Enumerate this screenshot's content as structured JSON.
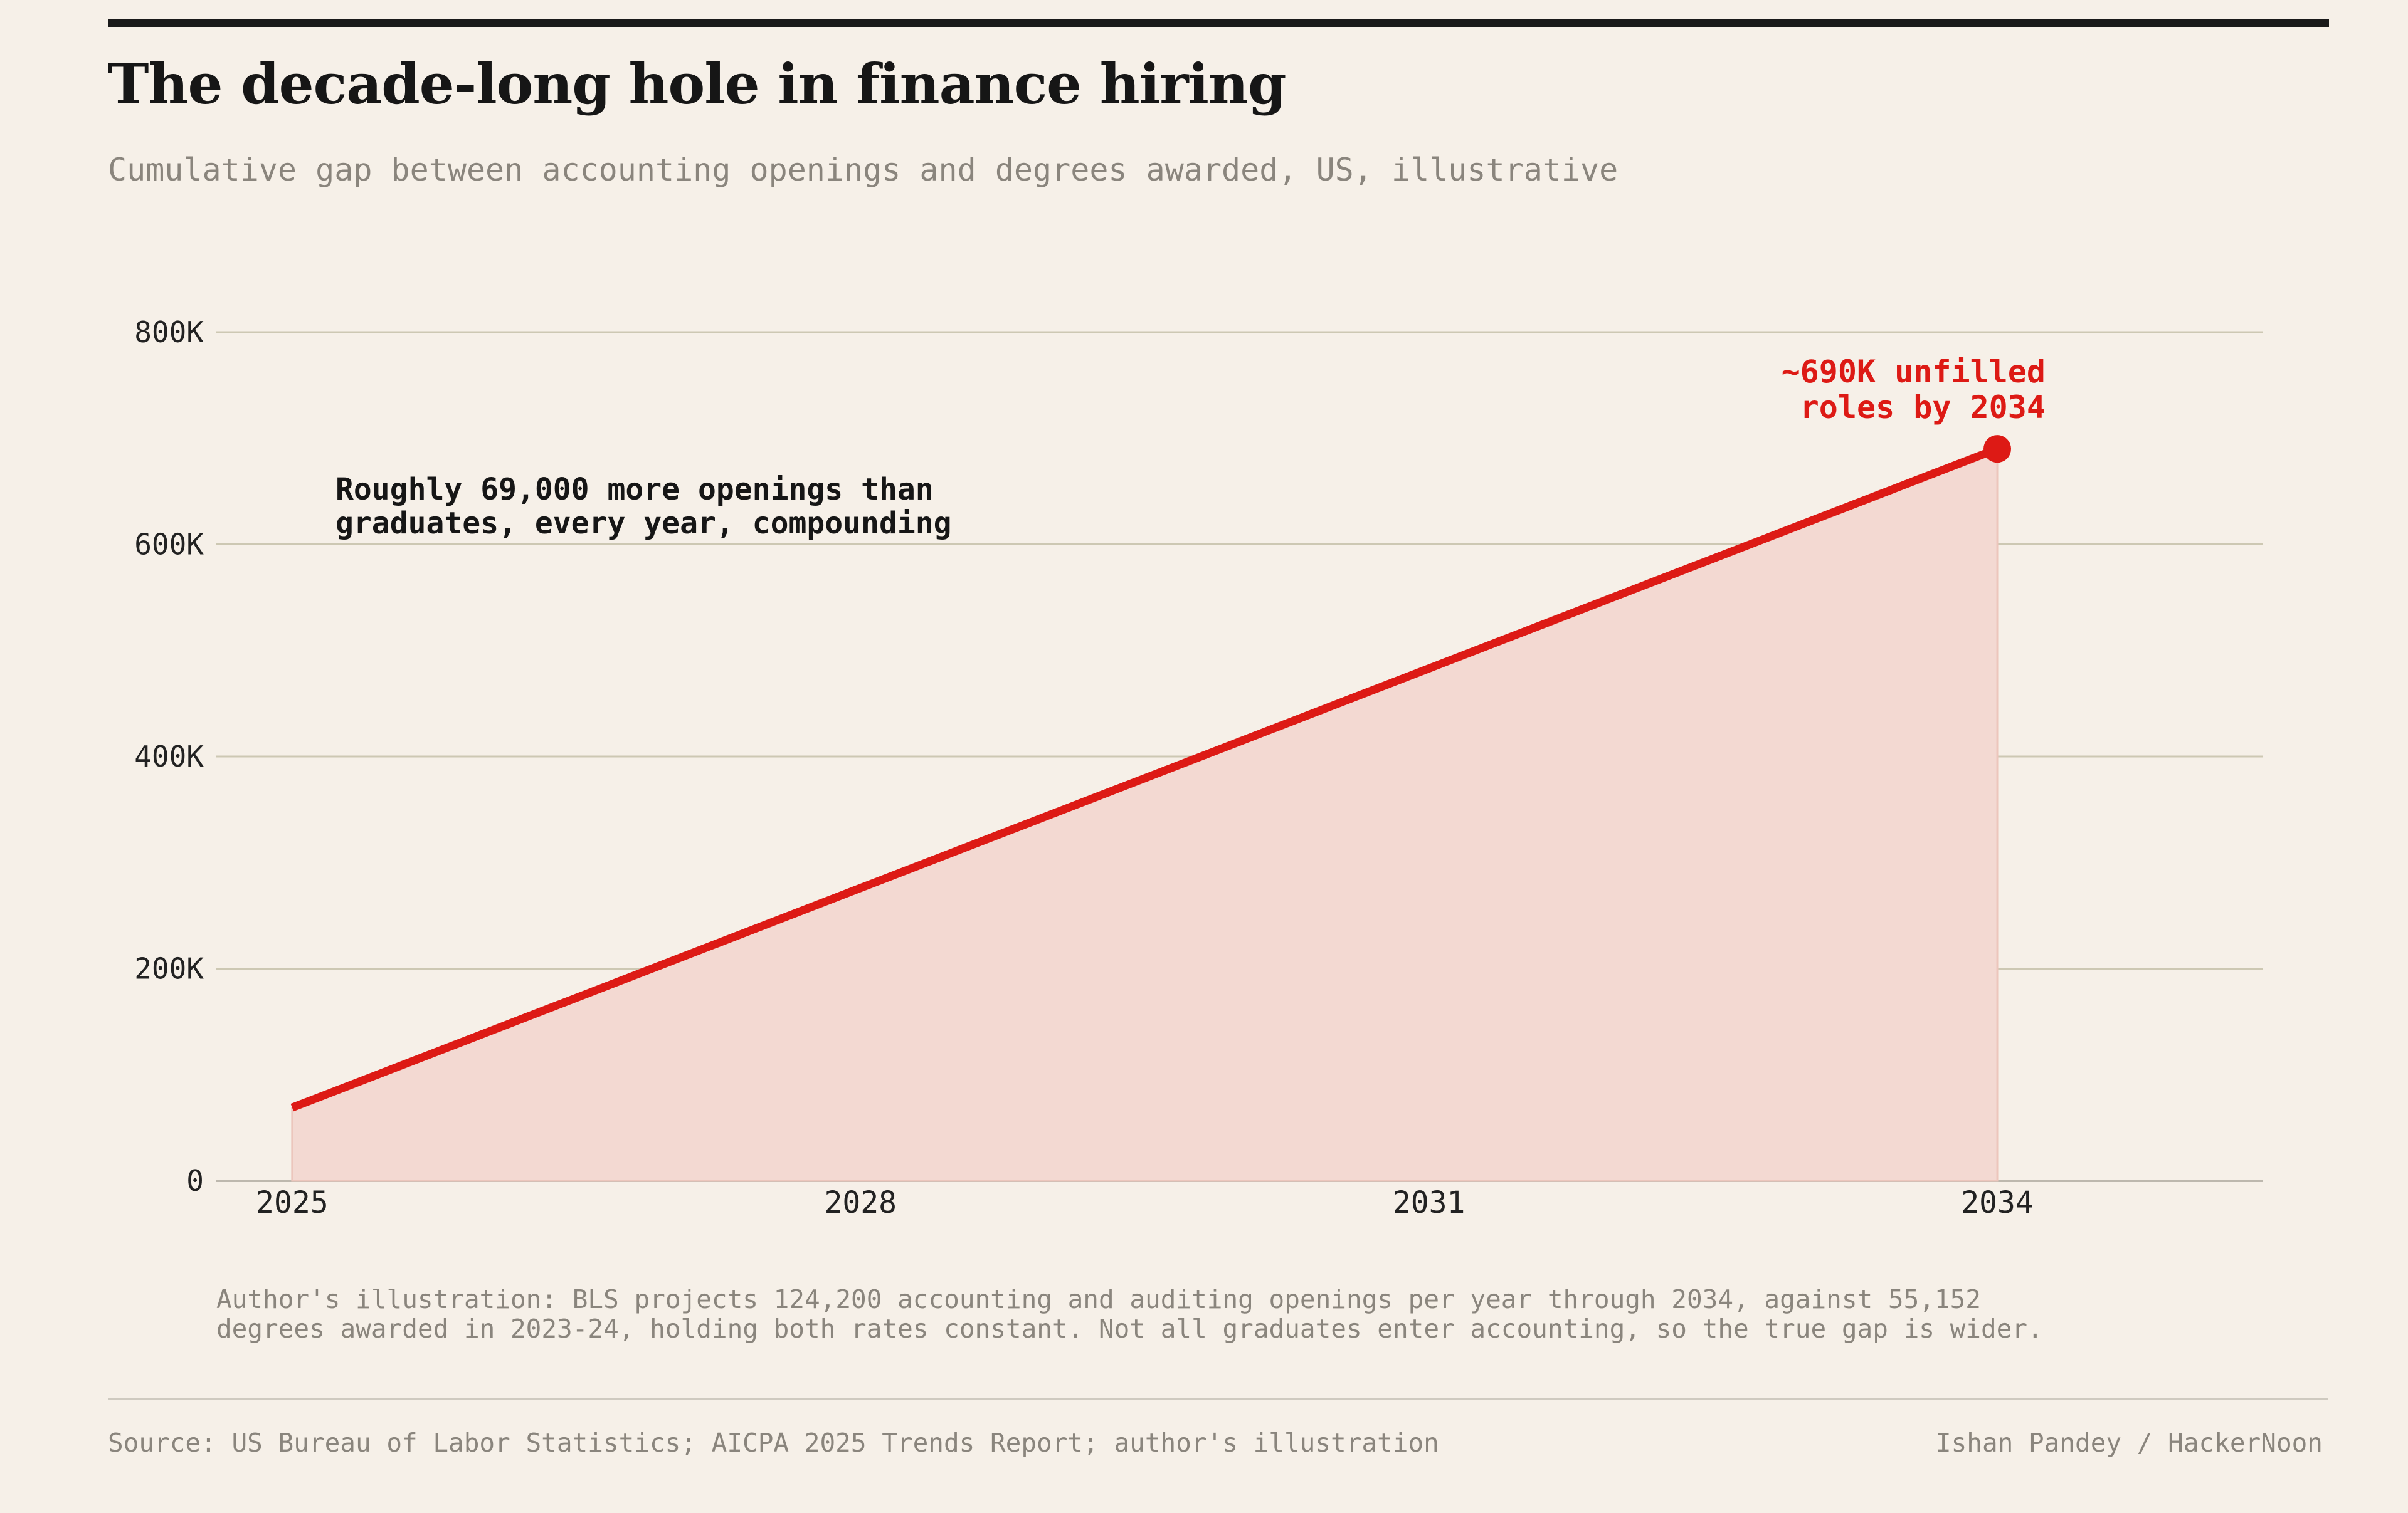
{
  "header": {
    "title": "The decade-long hole in finance hiring",
    "subtitle": "Cumulative gap between accounting openings and degrees awarded, US, illustrative"
  },
  "colors": {
    "background": "#f6f0e8",
    "line": "#dd1a15",
    "area": "#f3d9d2",
    "grid": "#cdc8b3",
    "text": "#161616",
    "muted": "#8a857d"
  },
  "chart_data": {
    "type": "area",
    "title": "The decade-long hole in finance hiring",
    "subtitle": "Cumulative gap between accounting openings and degrees awarded, US, illustrative",
    "xlabel": "",
    "ylabel": "",
    "x": [
      2025,
      2026,
      2027,
      2028,
      2029,
      2030,
      2031,
      2032,
      2033,
      2034
    ],
    "series": [
      {
        "values": [
          69000,
          138000,
          207000,
          276000,
          345000,
          414000,
          483000,
          552000,
          621000,
          690000
        ]
      }
    ],
    "xlim": [
      2024.6,
      2035.4
    ],
    "ylim": [
      0,
      800000
    ],
    "xticks": [
      2025,
      2028,
      2031,
      2034
    ],
    "xtick_labels": [
      "2025",
      "2028",
      "2031",
      "2034"
    ],
    "yticks": [
      0,
      200000,
      400000,
      600000,
      800000
    ],
    "ytick_labels": [
      "0",
      "200K",
      "400K",
      "600K",
      "800K"
    ],
    "grid": true,
    "legend": "none",
    "annotations": [
      {
        "text": "Roughly 69,000 more openings than\ngraduates, every year, compounding",
        "x": 2026.1,
        "y": 650000,
        "color": "#161616"
      },
      {
        "text": "~690K unfilled\nroles by 2034",
        "x": 2034,
        "y": 690000,
        "color": "#dd1a15"
      }
    ],
    "highlight_point": {
      "x": 2034,
      "y": 690000
    }
  },
  "footer": {
    "note": "Author's illustration: BLS projects 124,200 accounting and auditing openings per year through 2034, against 55,152\ndegrees awarded in 2023-24, holding both rates constant. Not all graduates enter accounting, so the true gap is wider.",
    "source": "Source: US Bureau of Labor Statistics; AICPA 2025 Trends Report; author's illustration",
    "byline": "Ishan Pandey / HackerNoon"
  }
}
